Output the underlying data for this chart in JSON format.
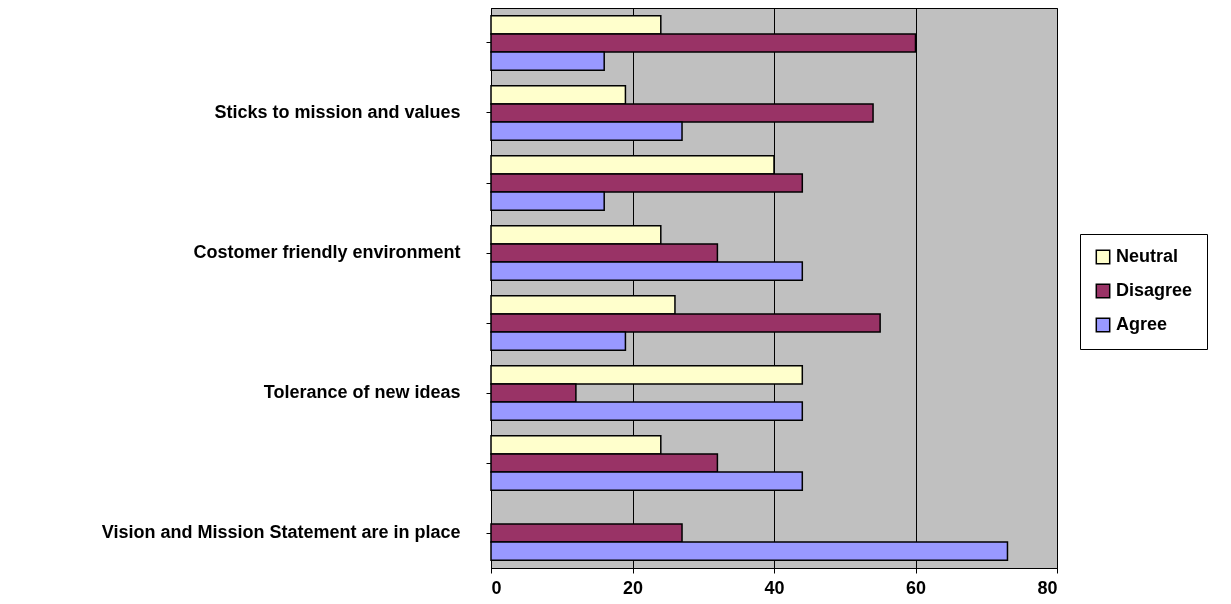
{
  "chart_data": {
    "type": "bar",
    "orientation": "horizontal",
    "categories": [
      null,
      "Sticks to mission and values",
      null,
      "Costomer friendly environment",
      null,
      "Tolerance of new ideas",
      null,
      "Vision and Mission Statement are in place"
    ],
    "series": [
      {
        "name": "Neutral",
        "color": "#ffffcc",
        "values": [
          24,
          19,
          40,
          24,
          26,
          44,
          24,
          null
        ]
      },
      {
        "name": "Disagree",
        "color": "#993366",
        "values": [
          60,
          54,
          44,
          32,
          55,
          12,
          32,
          27
        ]
      },
      {
        "name": "Agree",
        "color": "#9999ff",
        "values": [
          16,
          27,
          16,
          44,
          19,
          44,
          44,
          73
        ]
      }
    ],
    "xlim": [
      0,
      80
    ],
    "xticks": [
      0,
      20,
      40,
      60,
      80
    ],
    "grid": "x",
    "legend": "right"
  }
}
